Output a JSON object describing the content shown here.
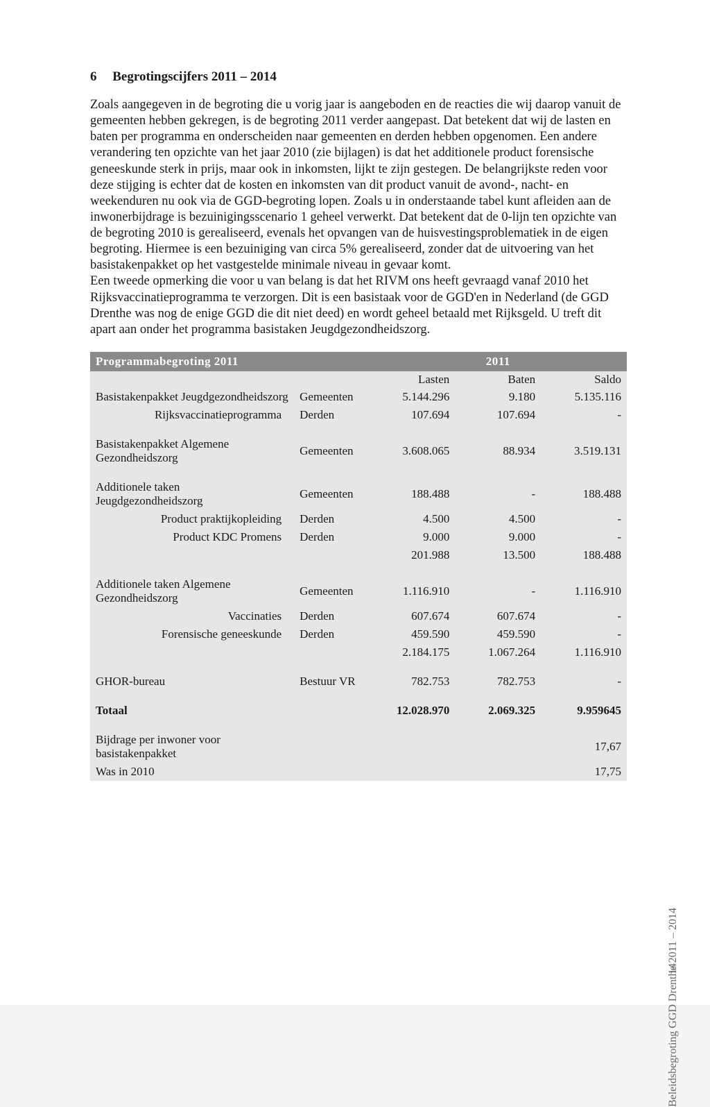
{
  "heading": {
    "number": "6",
    "title": "Begrotingscijfers 2011 – 2014"
  },
  "paragraph": "Zoals aangegeven in de begroting die u vorig jaar is aangeboden en de reacties die wij daarop vanuit de gemeenten hebben gekregen, is de begroting 2011 verder aangepast. Dat betekent dat wij de lasten en baten per programma en onderscheiden naar gemeenten en derden hebben opgenomen. Een andere verandering ten opzichte van het jaar 2010 (zie bijlagen) is dat het additionele product forensische geneeskunde sterk in prijs, maar ook in inkomsten, lijkt te zijn gestegen. De belangrijkste reden voor deze stijging is echter dat de kosten en inkomsten van dit product vanuit de avond-, nacht- en weekenduren nu ook via de GGD-begroting lopen. Zoals u in onderstaande tabel kunt afleiden aan de inwonerbijdrage is bezuinigingsscenario 1 geheel verwerkt. Dat betekent dat de 0-lijn ten opzichte van de begroting 2010 is gerealiseerd, evenals het opvangen van de huisvestingsproblematiek in de eigen begroting. Hiermee is een bezuiniging van circa 5% gerealiseerd, zonder dat de uitvoering van het basistakenpakket op het vastgestelde minimale niveau in gevaar komt.\nEen tweede opmerking die voor u van belang is dat het RIVM ons heeft gevraagd vanaf 2010 het Rijksvaccinatieprogramma te verzorgen. Dit is een basistaak voor de GGD'en in Nederland (de GGD Drenthe was nog de enige GGD die dit niet deed) en wordt geheel betaald met Rijksgeld. U treft dit apart aan onder het programma basistaken Jeugdgezondheidszorg.",
  "table": {
    "title": "Programmabegroting 2011",
    "year": "2011",
    "cols": {
      "lasten": "Lasten",
      "baten": "Baten",
      "saldo": "Saldo"
    },
    "rows": [
      {
        "label": "Basistakenpakket Jeugdgezondheidszorg",
        "source": "Gemeenten",
        "lasten": "5.144.296",
        "baten": "9.180",
        "saldo": "5.135.116"
      },
      {
        "label": "Rijksvaccinatieprogramma",
        "source": "Derden",
        "lasten": "107.694",
        "baten": "107.694",
        "saldo": "-",
        "indent": true
      },
      {
        "spacer": true
      },
      {
        "label": "Basistakenpakket Algemene Gezondheidszorg",
        "source": "Gemeenten",
        "lasten": "3.608.065",
        "baten": "88.934",
        "saldo": "3.519.131"
      },
      {
        "spacer": true
      },
      {
        "label": "Additionele taken Jeugdgezondheidszorg",
        "source": "Gemeenten",
        "lasten": "188.488",
        "baten": "-",
        "saldo": "188.488"
      },
      {
        "label": "Product praktijkopleiding",
        "source": "Derden",
        "lasten": "4.500",
        "baten": "4.500",
        "saldo": "-",
        "indent": true
      },
      {
        "label": "Product KDC Promens",
        "source": "Derden",
        "lasten": "9.000",
        "baten": "9.000",
        "saldo": "-",
        "indent": true
      },
      {
        "label": "",
        "source": "",
        "lasten": "201.988",
        "baten": "13.500",
        "saldo": "188.488"
      },
      {
        "spacer": true
      },
      {
        "label": "Additionele taken Algemene Gezondheidszorg",
        "source": "Gemeenten",
        "lasten": "1.116.910",
        "baten": "-",
        "saldo": "1.116.910"
      },
      {
        "label": "Vaccinaties",
        "source": "Derden",
        "lasten": "607.674",
        "baten": "607.674",
        "saldo": "-",
        "indent": true
      },
      {
        "label": "Forensische geneeskunde",
        "source": "Derden",
        "lasten": "459.590",
        "baten": "459.590",
        "saldo": "-",
        "indent": true
      },
      {
        "label": "",
        "source": "",
        "lasten": "2.184.175",
        "baten": "1.067.264",
        "saldo": "1.116.910"
      },
      {
        "spacer": true
      },
      {
        "label": "GHOR-bureau",
        "source": "Bestuur VR",
        "lasten": "782.753",
        "baten": "782.753",
        "saldo": "-"
      },
      {
        "spacer": true
      },
      {
        "label": "Totaal",
        "source": "",
        "lasten": "12.028.970",
        "baten": "2.069.325",
        "saldo": "9.959645",
        "bold": true
      },
      {
        "spacer": true
      },
      {
        "label": "Bijdrage per inwoner voor basistakenpakket",
        "source": "",
        "lasten": "",
        "baten": "",
        "saldo": "17,67"
      },
      {
        "label": "Was in 2010",
        "source": "",
        "lasten": "",
        "baten": "",
        "saldo": "17,75"
      }
    ]
  },
  "side": {
    "label": "Beleidsbegroting GGD Drenthe 2011 – 2014",
    "page": "14"
  },
  "colors": {
    "page_bg": "#ffffff",
    "table_bg": "#e6e6e6",
    "header_bg": "#8a8a8a",
    "header_fg": "#ffffff",
    "text": "#1a1a1a",
    "side_text": "#666666"
  },
  "fonts": {
    "body_pt": 18.5,
    "heading_pt": 19,
    "table_pt": 17
  }
}
